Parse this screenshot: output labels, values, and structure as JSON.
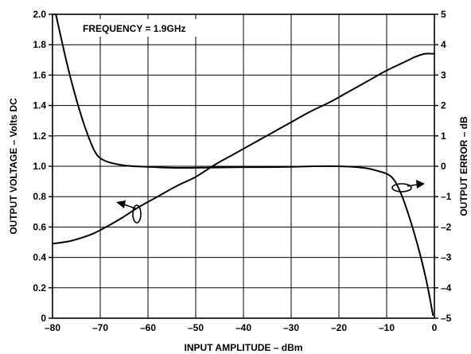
{
  "chart_data": {
    "type": "line",
    "annotation": "FREQUENCY = 1.9GHz",
    "xlabel": "INPUT AMPLITUDE – dBm",
    "ylabel": "OUTPUT VOLTAGE – Volts DC",
    "y2label": "OUTPUT ERROR – dB",
    "xlim": [
      -80,
      0
    ],
    "ylim": [
      0,
      2.0
    ],
    "y2lim": [
      -5,
      5
    ],
    "grid": true,
    "x_ticks": [
      -80,
      -70,
      -60,
      -50,
      -40,
      -30,
      -20,
      -10,
      0
    ],
    "x_tick_labels": [
      "–80",
      "–70",
      "–60",
      "–50",
      "–40",
      "–30",
      "–20",
      "–10",
      "0"
    ],
    "y_ticks": [
      0,
      0.2,
      0.4,
      0.6,
      0.8,
      1.0,
      1.2,
      1.4,
      1.6,
      1.8,
      2.0
    ],
    "y_tick_labels": [
      "0",
      "0.2",
      "0.4",
      "0.6",
      "0.8",
      "1.0",
      "1.2",
      "1.4",
      "1.6",
      "1.8",
      "2.0"
    ],
    "y2_ticks": [
      -5,
      -4,
      -3,
      -2,
      -1,
      0,
      1,
      2,
      3,
      4,
      5
    ],
    "y2_tick_labels": [
      "–5",
      "–4",
      "–3",
      "–2",
      "–1",
      "0",
      "1",
      "2",
      "3",
      "4",
      "5"
    ],
    "series": [
      {
        "axis": "left",
        "x": [
          -80,
          -76,
          -72,
          -70,
          -66,
          -62,
          -58,
          -54,
          -50,
          -46,
          -42,
          -38,
          -34,
          -30,
          -26,
          -22,
          -18,
          -14,
          -10,
          -6,
          -4,
          -2,
          0
        ],
        "y": [
          0.49,
          0.51,
          0.55,
          0.58,
          0.65,
          0.73,
          0.8,
          0.87,
          0.93,
          1.01,
          1.08,
          1.15,
          1.22,
          1.29,
          1.36,
          1.42,
          1.49,
          1.56,
          1.63,
          1.69,
          1.72,
          1.74,
          1.74
        ]
      },
      {
        "axis": "right",
        "x": [
          -79.3,
          -77,
          -75,
          -73,
          -71,
          -69,
          -65,
          -60,
          -55,
          -50,
          -45,
          -40,
          -35,
          -30,
          -25,
          -20,
          -15,
          -12,
          -9,
          -7,
          -5,
          -3,
          -1.5,
          -0.3
        ],
        "y": [
          5.0,
          3.4,
          2.2,
          1.2,
          0.45,
          0.18,
          0.03,
          -0.02,
          -0.05,
          -0.05,
          -0.04,
          -0.03,
          -0.03,
          -0.02,
          0.0,
          0.0,
          -0.05,
          -0.15,
          -0.35,
          -0.9,
          -1.8,
          -2.9,
          -3.9,
          -4.9
        ]
      }
    ]
  }
}
